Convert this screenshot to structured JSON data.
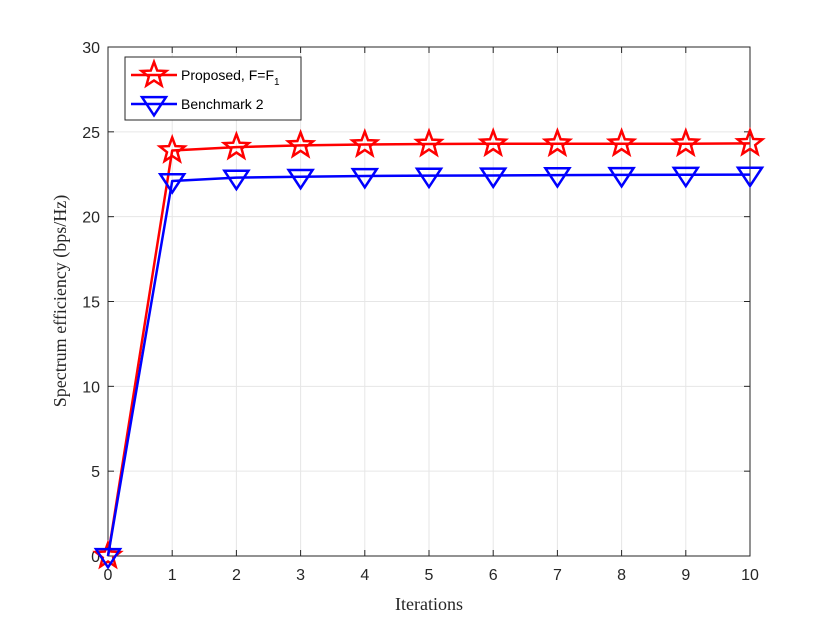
{
  "chart_data": {
    "type": "line",
    "title": "",
    "xlabel": "Iterations",
    "ylabel": "Spectrum efficiency (bps/Hz)",
    "xlim": [
      0,
      10
    ],
    "ylim": [
      0,
      30
    ],
    "xticks": [
      "0",
      "1",
      "2",
      "3",
      "4",
      "5",
      "6",
      "7",
      "8",
      "9",
      "10"
    ],
    "yticks": [
      "0",
      "5",
      "10",
      "15",
      "20",
      "25",
      "30"
    ],
    "grid": true,
    "legend_position": "top-left",
    "x": [
      0,
      1,
      2,
      3,
      4,
      5,
      6,
      7,
      8,
      9,
      10
    ],
    "series": [
      {
        "name": "Proposed, F=F",
        "name_subscript": "1",
        "color": "#ff0000",
        "marker": "star",
        "values": [
          0,
          23.9,
          24.1,
          24.2,
          24.25,
          24.28,
          24.3,
          24.3,
          24.3,
          24.3,
          24.32
        ]
      },
      {
        "name": "Benchmark 2",
        "color": "#0000ff",
        "marker": "triangle-down",
        "values": [
          0,
          22.1,
          22.3,
          22.35,
          22.4,
          22.42,
          22.43,
          22.45,
          22.46,
          22.47,
          22.48
        ]
      }
    ]
  }
}
